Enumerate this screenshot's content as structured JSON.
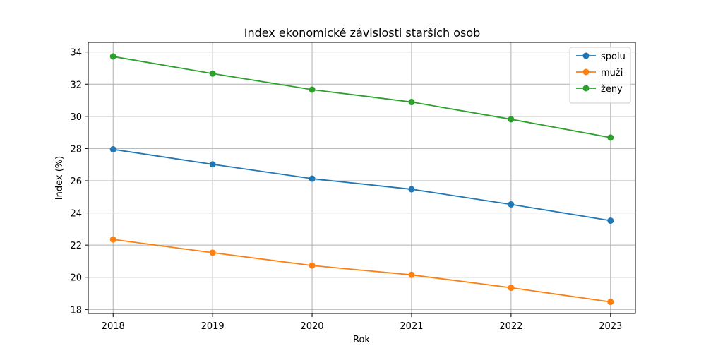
{
  "chart_data": {
    "type": "line",
    "title": "Index ekonomické závislosti starších osob",
    "xlabel": "Rok",
    "ylabel": "Index (%)",
    "x": [
      2018,
      2019,
      2020,
      2021,
      2022,
      2023
    ],
    "xlim": [
      2017.75,
      2023.25
    ],
    "ylim": [
      17.75,
      34.6
    ],
    "yticks": [
      18,
      20,
      22,
      24,
      26,
      28,
      30,
      32,
      34
    ],
    "grid": true,
    "legend": "top-right",
    "marker": "circle",
    "series": [
      {
        "name": "spolu",
        "color": "#1f77b4",
        "values": [
          27.95,
          27.02,
          26.13,
          25.47,
          24.53,
          23.52
        ]
      },
      {
        "name": "muži",
        "color": "#ff7f0e",
        "values": [
          22.35,
          21.53,
          20.73,
          20.15,
          19.35,
          18.47
        ]
      },
      {
        "name": "ženy",
        "color": "#2ca02c",
        "values": [
          33.72,
          32.66,
          31.66,
          30.89,
          29.82,
          28.68
        ]
      }
    ]
  }
}
